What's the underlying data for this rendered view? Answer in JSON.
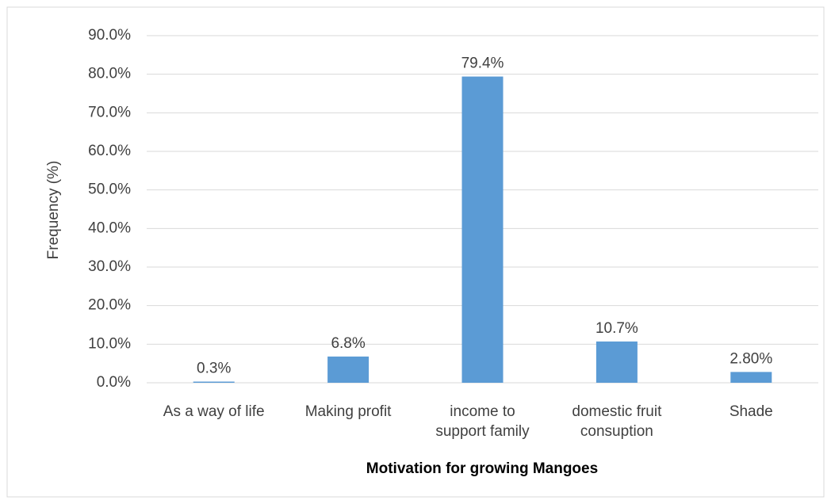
{
  "chart_data": {
    "type": "bar",
    "x_label": "Motivation for growing Mangoes",
    "y_label": "Frequency (%)",
    "categories": [
      "As a way of life",
      "Making profit",
      "income to\nsupport family",
      "domestic fruit\nconsuption",
      "Shade"
    ],
    "values": [
      0.3,
      6.8,
      79.4,
      10.7,
      2.8
    ],
    "value_labels": [
      "0.3%",
      "6.8%",
      "79.4%",
      "10.7%",
      "2.80%"
    ],
    "color": "#5b9bd5",
    "ylim": [
      0,
      90
    ],
    "yticks": [
      {
        "value": 0,
        "label": "0.0%"
      },
      {
        "value": 10,
        "label": "10.0%"
      },
      {
        "value": 20,
        "label": "20.0%"
      },
      {
        "value": 30,
        "label": "30.0%"
      },
      {
        "value": 40,
        "label": "40.0%"
      },
      {
        "value": 50,
        "label": "50.0%"
      },
      {
        "value": 60,
        "label": "60.0%"
      },
      {
        "value": 70,
        "label": "70.0%"
      },
      {
        "value": 80,
        "label": "80.0%"
      },
      {
        "value": 90,
        "label": "90.0%"
      }
    ],
    "grid": true
  }
}
